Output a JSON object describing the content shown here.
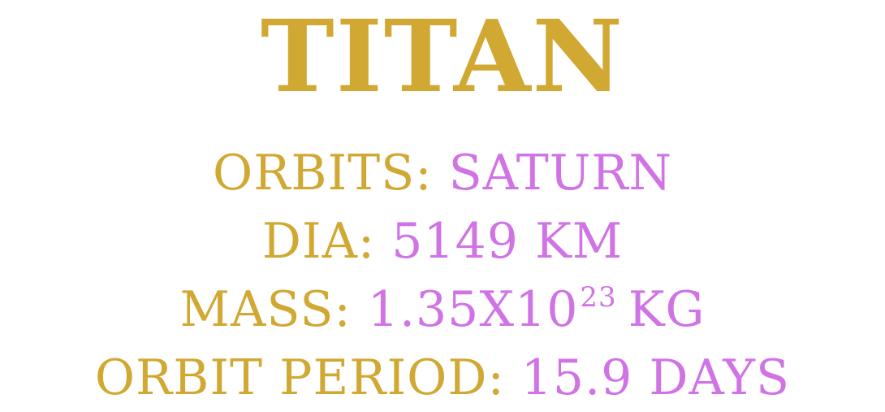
{
  "colors": {
    "label": "#d0a832",
    "value": "#d073e5",
    "background": "#ffffff"
  },
  "title": "TITAN",
  "facts": {
    "orbits": {
      "label": "ORBITS:",
      "value": "SATURN"
    },
    "diameter": {
      "label": "DIA:",
      "value": "5149 KM"
    },
    "mass": {
      "label": "MASS:",
      "value_base": "1.35X10",
      "value_exponent": "23",
      "value_unit": "KG"
    },
    "orbit_period": {
      "label": "ORBIT PERIOD:",
      "value": "15.9 DAYS"
    }
  }
}
